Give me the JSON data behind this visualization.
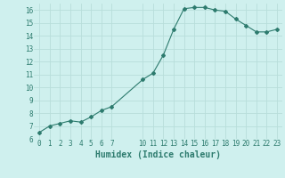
{
  "x": [
    0,
    1,
    2,
    3,
    4,
    5,
    6,
    7,
    10,
    11,
    12,
    13,
    14,
    15,
    16,
    17,
    18,
    19,
    20,
    21,
    22,
    23
  ],
  "y": [
    6.5,
    7.0,
    7.2,
    7.4,
    7.3,
    7.7,
    8.2,
    8.5,
    10.6,
    11.1,
    12.5,
    14.5,
    16.1,
    16.2,
    16.2,
    16.0,
    15.9,
    15.3,
    14.8,
    14.3,
    14.3,
    14.5
  ],
  "line_color": "#2d7b6e",
  "marker": "D",
  "marker_size": 2,
  "bg_color": "#cff0ee",
  "grid_color": "#b8deda",
  "xlabel": "Humidex (Indice chaleur)",
  "ylim": [
    6,
    16.5
  ],
  "xlim": [
    -0.5,
    23.5
  ],
  "yticks": [
    6,
    7,
    8,
    9,
    10,
    11,
    12,
    13,
    14,
    15,
    16
  ],
  "xticks": [
    0,
    1,
    2,
    3,
    4,
    5,
    6,
    7,
    10,
    11,
    12,
    13,
    14,
    15,
    16,
    17,
    18,
    19,
    20,
    21,
    22,
    23
  ],
  "tick_fontsize": 5.5,
  "xlabel_fontsize": 7,
  "line_width": 0.8
}
